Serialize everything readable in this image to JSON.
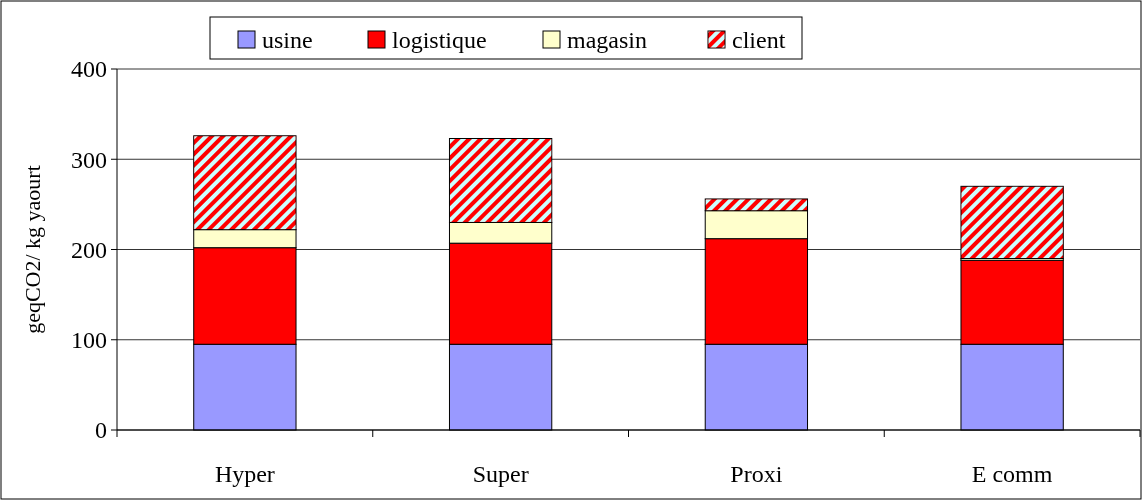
{
  "chart_data": {
    "type": "bar",
    "stacked": true,
    "ylabel": "geqCO2/ kg yaourt",
    "categories": [
      "Hyper",
      "Super",
      "Proxi",
      "E comm"
    ],
    "series": [
      {
        "name": "usine",
        "color": "#9999ff",
        "values": [
          95,
          95,
          95,
          95
        ]
      },
      {
        "name": "logistique",
        "color": "#ff0000",
        "values": [
          107,
          112,
          117,
          93
        ]
      },
      {
        "name": "magasin",
        "color": "#ffffcc",
        "values": [
          20,
          23,
          31,
          2
        ]
      },
      {
        "name": "client",
        "color": "#ff0000",
        "values": [
          104,
          93,
          13,
          80
        ]
      }
    ],
    "ylim": [
      0,
      400
    ],
    "yticks": [
      0,
      100,
      200,
      300,
      400
    ],
    "grid": "y",
    "legend": "top"
  }
}
